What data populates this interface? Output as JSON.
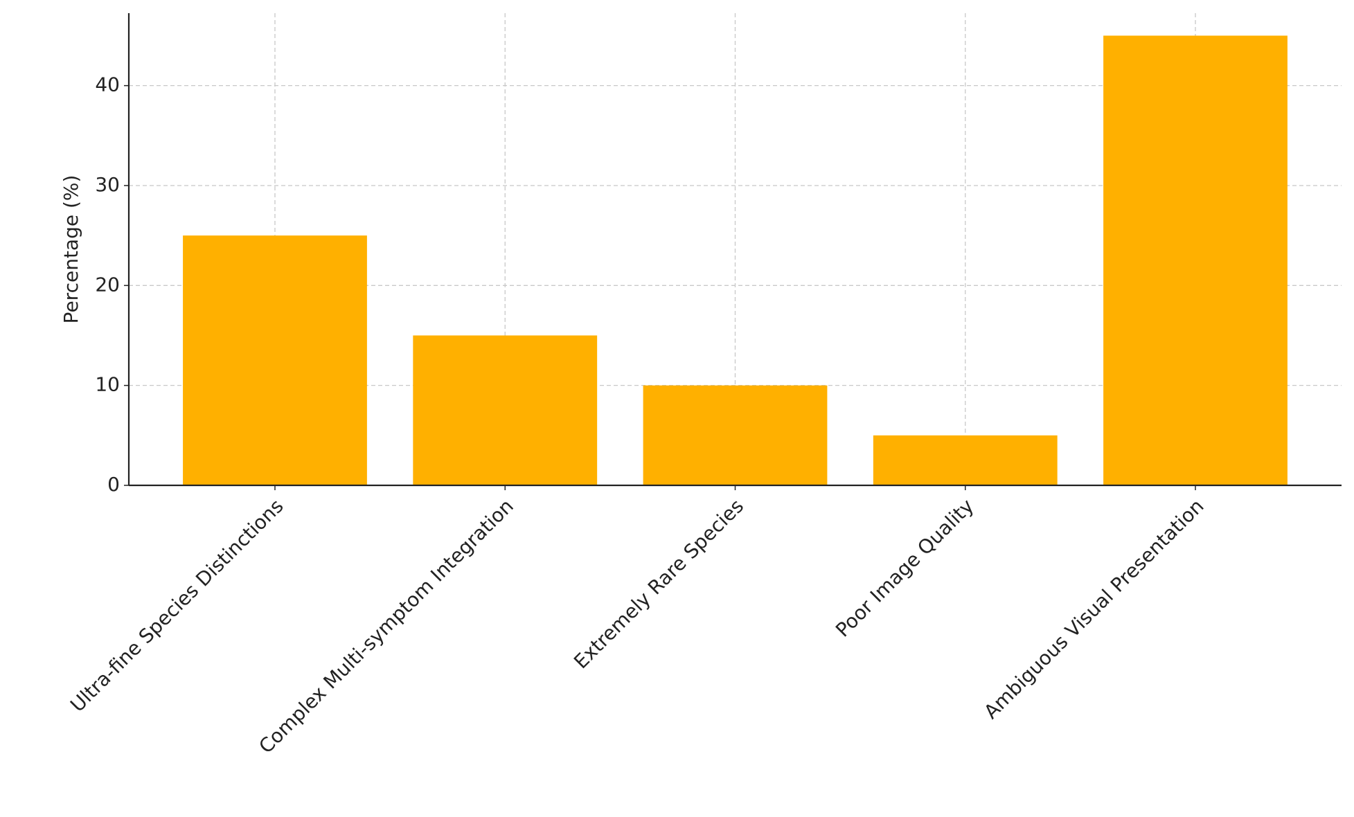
{
  "chart_data": {
    "type": "bar",
    "y_label": "Percentage (%)",
    "categories": [
      "Ultra-fine Species Distinctions",
      "Complex Multi-symptom Integration",
      "Extremely Rare Species",
      "Poor Image Quality",
      "Ambiguous Visual Presentation"
    ],
    "values": [
      25,
      15,
      10,
      5,
      45
    ],
    "color": "#ffb000",
    "ylim": [
      0,
      47.25
    ],
    "yticks": [
      0,
      10,
      20,
      30,
      40
    ],
    "grid": true
  }
}
